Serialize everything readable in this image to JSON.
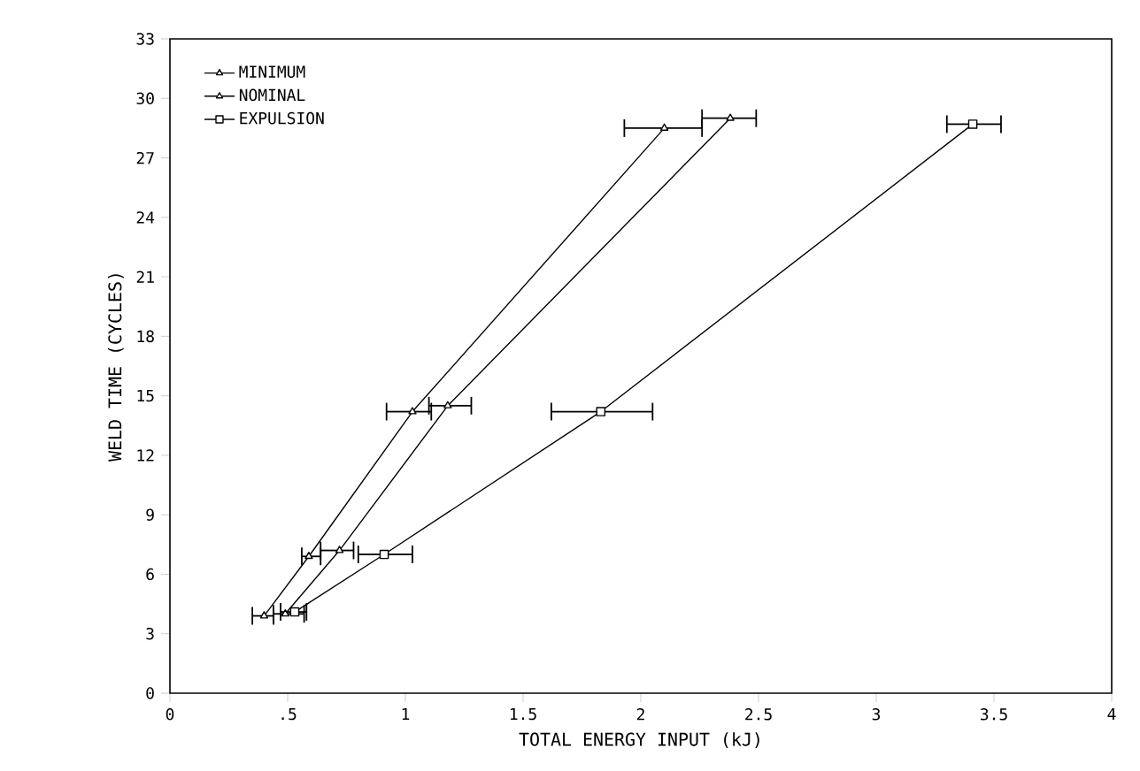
{
  "chart_data": {
    "type": "line",
    "xlabel": "TOTAL ENERGY INPUT (kJ)",
    "ylabel": "WELD TIME (CYCLES)",
    "xlim": [
      0,
      4
    ],
    "ylim": [
      0,
      33
    ],
    "xticks": [
      0,
      {
        "value": 0.5,
        "label": ".5"
      },
      1,
      1.5,
      2,
      2.5,
      3,
      3.5,
      4
    ],
    "yticks": [
      0,
      3,
      6,
      9,
      12,
      15,
      18,
      21,
      24,
      27,
      30,
      33
    ],
    "grid": false,
    "legend": "top left",
    "line_style": "solid",
    "series": [
      {
        "name": "MINIMUM",
        "color": "#000000",
        "marker": "triangle",
        "x": [
          0.4,
          0.59,
          1.03,
          2.1
        ],
        "values": [
          3.9,
          6.9,
          14.2,
          28.5
        ],
        "xerrors": [
          [
            0.35,
            0.44
          ],
          [
            0.56,
            0.64
          ],
          [
            0.92,
            1.11
          ],
          [
            1.93,
            2.26
          ]
        ]
      },
      {
        "name": "NOMINAL",
        "color": "#000000",
        "marker": "triangle",
        "x": [
          0.49,
          0.72,
          1.18,
          2.38
        ],
        "values": [
          4.0,
          7.2,
          14.5,
          29.0
        ],
        "xerrors": [
          [
            0.44,
            0.57
          ],
          [
            0.64,
            0.78
          ],
          [
            1.1,
            1.28
          ],
          [
            2.26,
            2.49
          ]
        ]
      },
      {
        "name": "EXPULSION",
        "color": "#000000",
        "marker": "square",
        "x": [
          0.53,
          0.91,
          1.83,
          3.41
        ],
        "values": [
          4.1,
          7.0,
          14.2,
          28.7
        ],
        "xerrors": [
          [
            0.47,
            0.58
          ],
          [
            0.8,
            1.03
          ],
          [
            1.62,
            2.05
          ],
          [
            3.3,
            3.53
          ]
        ]
      }
    ]
  }
}
